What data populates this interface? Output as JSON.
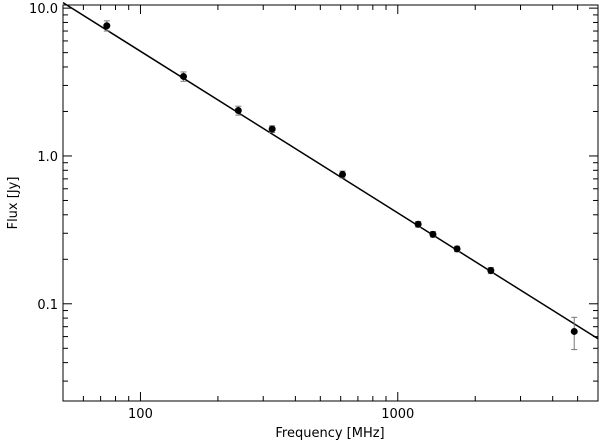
{
  "chart_data": {
    "type": "scatter",
    "xlabel": "Frequency [MHz]",
    "ylabel": "Flux [Jy]",
    "x_scale": "log",
    "y_scale": "log",
    "xlim": [
      50,
      6000
    ],
    "ylim": [
      0.022,
      10.5
    ],
    "x_tick_values": [
      100,
      1000
    ],
    "x_tick_labels": [
      "100",
      "1000"
    ],
    "y_tick_values": [
      0.1,
      1.0,
      10.0
    ],
    "y_tick_labels": [
      "0.1",
      "1.0",
      "10.0"
    ],
    "grid": false,
    "series": [
      {
        "kind": "points_with_errorbars",
        "x": [
          74,
          147,
          240,
          325,
          610,
          1200,
          1370,
          1700,
          2300,
          4850
        ],
        "y": [
          7.6,
          3.45,
          2.03,
          1.52,
          0.75,
          0.345,
          0.295,
          0.235,
          0.168,
          0.065
        ],
        "yerr": [
          0.6,
          0.25,
          0.14,
          0.08,
          0.04,
          0.015,
          0.013,
          0.01,
          0.008,
          0.016
        ]
      },
      {
        "kind": "fit_line",
        "x": [
          50,
          6000
        ],
        "y": [
          10.9,
          0.058
        ]
      }
    ]
  }
}
